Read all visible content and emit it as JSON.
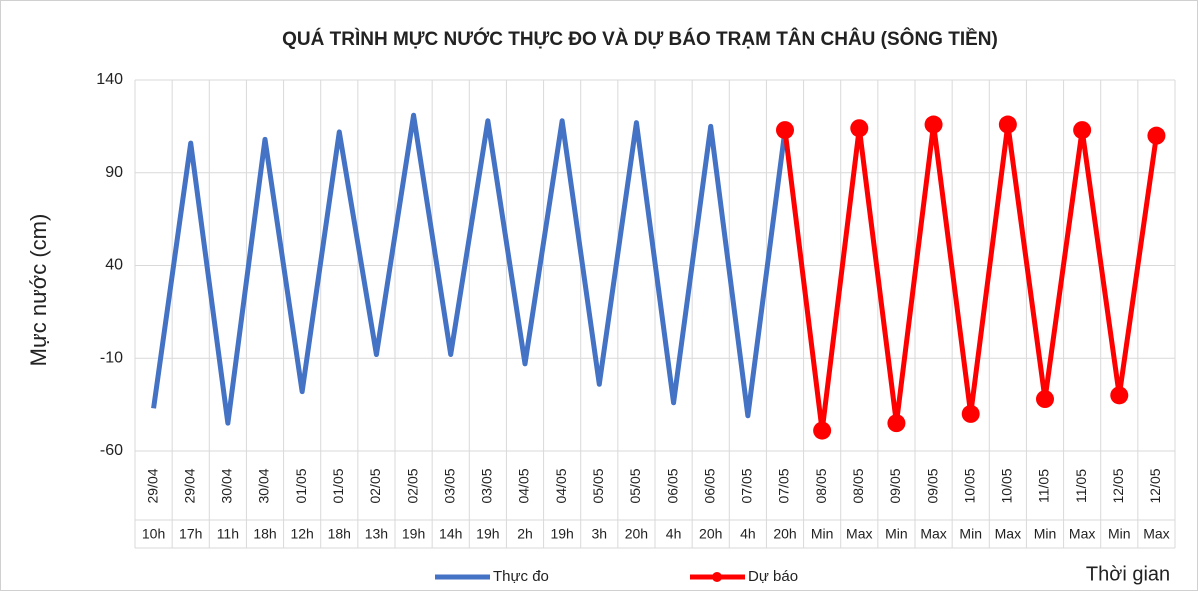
{
  "chart_data": {
    "type": "line",
    "title": "QUÁ TRÌNH MỰC NƯỚC THỰC ĐO VÀ DỰ BÁO TRẠM TÂN CHÂU (SÔNG TIỀN)",
    "y_label": "Mực nước (cm)",
    "x_label": "Thời gian",
    "categories": [
      [
        "29/04",
        "10h"
      ],
      [
        "29/04",
        "17h"
      ],
      [
        "30/04",
        "11h"
      ],
      [
        "30/04",
        "18h"
      ],
      [
        "01/05",
        "12h"
      ],
      [
        "01/05",
        "18h"
      ],
      [
        "02/05",
        "13h"
      ],
      [
        "02/05",
        "19h"
      ],
      [
        "03/05",
        "14h"
      ],
      [
        "03/05",
        "19h"
      ],
      [
        "04/05",
        "2h"
      ],
      [
        "04/05",
        "19h"
      ],
      [
        "05/05",
        "3h"
      ],
      [
        "05/05",
        "20h"
      ],
      [
        "06/05",
        "4h"
      ],
      [
        "06/05",
        "20h"
      ],
      [
        "07/05",
        "4h"
      ],
      [
        "07/05",
        "20h"
      ],
      [
        "08/05",
        "Min"
      ],
      [
        "08/05",
        "Max"
      ],
      [
        "09/05",
        "Min"
      ],
      [
        "09/05",
        "Max"
      ],
      [
        "10/05",
        "Min"
      ],
      [
        "10/05",
        "Max"
      ],
      [
        "11/05",
        "Min"
      ],
      [
        "11/05",
        "Max"
      ],
      [
        "12/05",
        "Min"
      ],
      [
        "12/05",
        "Max"
      ]
    ],
    "series": [
      {
        "name": "Thực đo",
        "color": "#4472c4",
        "markers": false,
        "values": [
          -37,
          106,
          -45,
          108,
          -28,
          112,
          -8,
          121,
          -8,
          118,
          -13,
          118,
          -24,
          117,
          -34,
          115,
          -41,
          113,
          null,
          null,
          null,
          null,
          null,
          null,
          null,
          null,
          null,
          null
        ]
      },
      {
        "name": "Dự báo",
        "color": "#ff0000",
        "markers": true,
        "values": [
          null,
          null,
          null,
          null,
          null,
          null,
          null,
          null,
          null,
          null,
          null,
          null,
          null,
          null,
          null,
          null,
          null,
          113,
          -49,
          114,
          -45,
          116,
          -40,
          116,
          -32,
          113,
          -30,
          110
        ]
      }
    ],
    "ylim": [
      -60,
      140
    ],
    "yticks": [
      -60,
      -10,
      40,
      90,
      140
    ],
    "grid": true,
    "legend": "bottom"
  }
}
